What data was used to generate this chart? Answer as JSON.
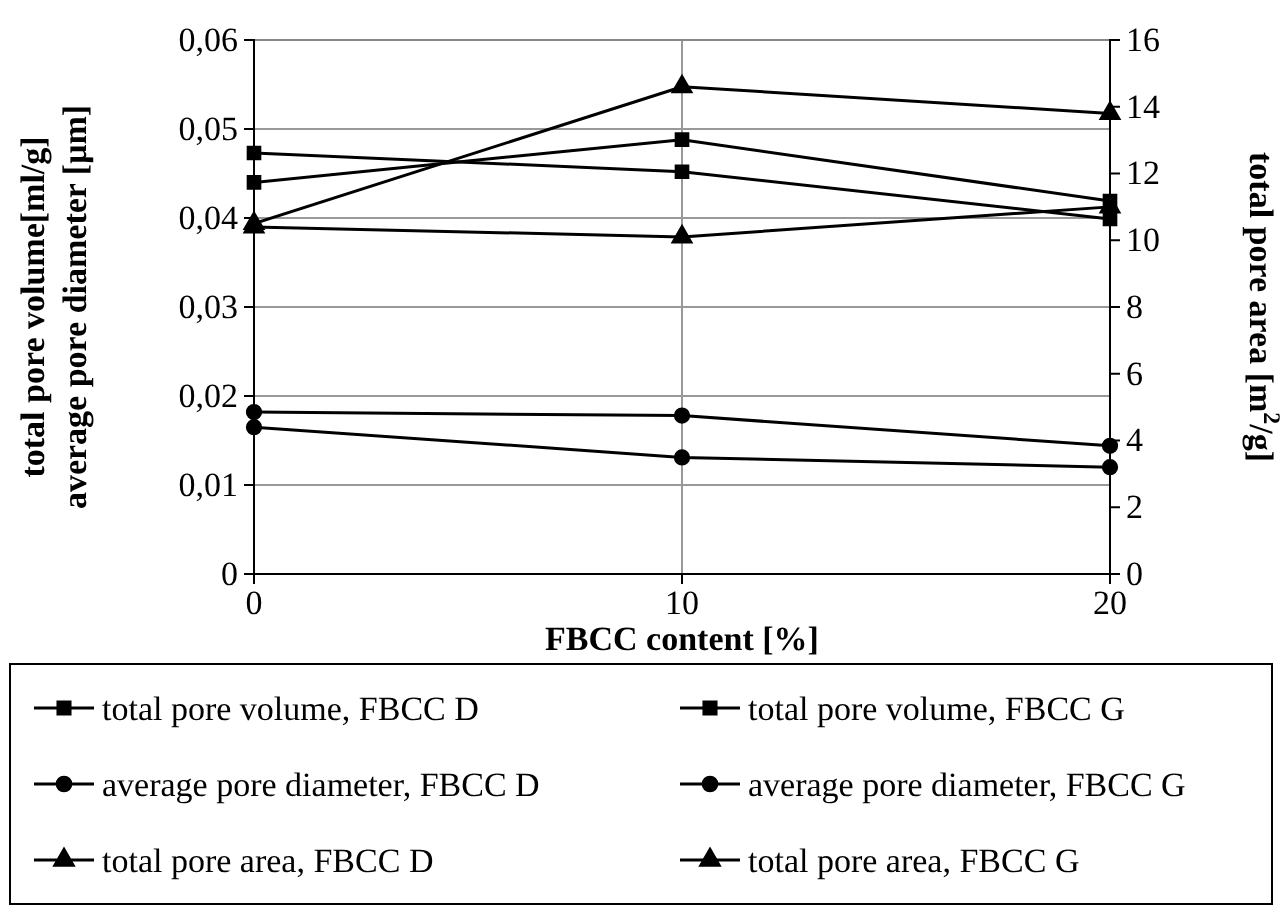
{
  "chart_data": {
    "type": "line",
    "xlabel": "FBCC content [%]",
    "ylabel": "total pore volume[ml/g]\naverage pore diameter [μm]",
    "y2label": "total pore area [m$^{2}$/g]",
    "x": [
      0,
      10,
      20
    ],
    "xlim": [
      0,
      20
    ],
    "xticks": [
      0,
      10,
      20
    ],
    "ylim": [
      0,
      0.06
    ],
    "yticks": [
      {
        "value": 0,
        "label": "0"
      },
      {
        "value": 0.01,
        "label": "0,01"
      },
      {
        "value": 0.02,
        "label": "0,02"
      },
      {
        "value": 0.03,
        "label": "0,03"
      },
      {
        "value": 0.04,
        "label": "0,04"
      },
      {
        "value": 0.05,
        "label": "0,05"
      },
      {
        "value": 0.06,
        "label": "0,06"
      }
    ],
    "y2lim": [
      0,
      16
    ],
    "y2ticks": [
      0,
      2,
      4,
      6,
      8,
      10,
      12,
      14,
      16
    ],
    "grid": true,
    "legend": "bottom",
    "line_style": "solid",
    "series": [
      {
        "name": "total pore volume, FBCC D",
        "color": "#000000",
        "marker": "square",
        "values": [
          0.044,
          0.0488,
          0.0419
        ]
      },
      {
        "name": "total pore volume, FBCC G",
        "color": "#000000",
        "marker": "square",
        "values": [
          0.0473,
          0.0452,
          0.0399
        ]
      },
      {
        "name": "average pore diameter, FBCC D",
        "color": "#000000",
        "marker": "circle",
        "values": [
          0.0165,
          0.0131,
          0.012
        ]
      },
      {
        "name": "average pore diameter, FBCC G",
        "color": "#000000",
        "marker": "circle",
        "values": [
          0.0182,
          0.0178,
          0.0144
        ]
      },
      {
        "name": "total pore area, FBCC D",
        "color": "#000000",
        "marker": "triangle",
        "axis": "y2",
        "values": [
          10.5,
          14.6,
          13.8
        ]
      },
      {
        "name": "total pore area, FBCC G",
        "color": "#000000",
        "marker": "triangle",
        "axis": "y2",
        "values": [
          10.4,
          10.1,
          11.0
        ]
      }
    ]
  }
}
